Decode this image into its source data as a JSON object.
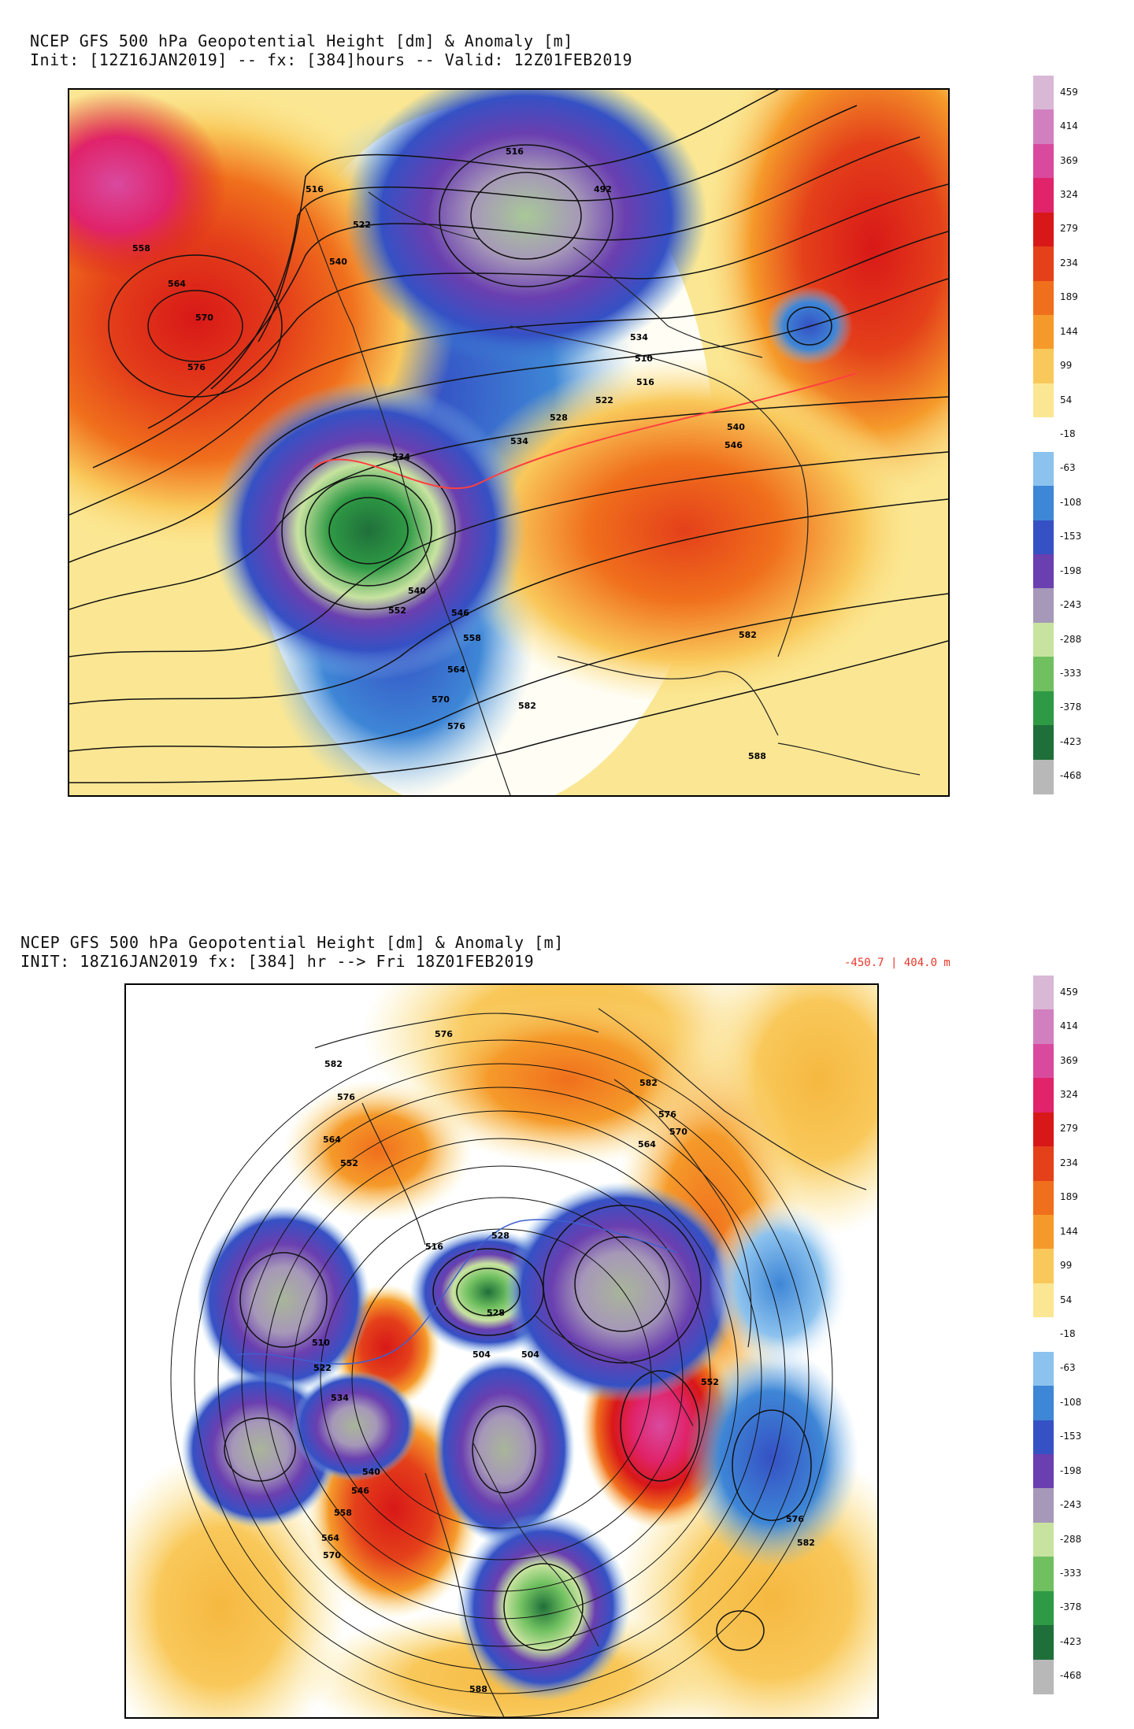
{
  "top": {
    "title_line1": "NCEP GFS 500 hPa Geopotential Height [dm] & Anomaly [m]",
    "title_line2": "Init: [12Z16JAN2019] -- fx: [384]hours -- Valid: 12Z01FEB2019",
    "height_labels": [
      "558",
      "564",
      "570",
      "576",
      "522",
      "540",
      "516",
      "534",
      "516",
      "492",
      "534",
      "510",
      "516",
      "522",
      "528",
      "534",
      "540",
      "546",
      "552",
      "540",
      "546",
      "558",
      "564",
      "570",
      "576",
      "582",
      "588",
      "582"
    ]
  },
  "bottom": {
    "title_line1": "NCEP GFS 500 hPa Geopotential Height [dm] & Anomaly [m]",
    "title_line2": "INIT: 18Z16JAN2019 fx: [384] hr --> Fri 18Z01FEB2019",
    "range": "-450.7 | 404.0 m",
    "height_labels": [
      "576",
      "582",
      "576",
      "564",
      "552",
      "528",
      "516",
      "510",
      "522",
      "534",
      "540",
      "546",
      "558",
      "564",
      "570",
      "528",
      "504",
      "504",
      "582",
      "576",
      "570",
      "564",
      "552",
      "576",
      "582",
      "588"
    ]
  },
  "colorbar": {
    "labels": [
      "459",
      "414",
      "369",
      "324",
      "279",
      "234",
      "189",
      "144",
      "99",
      "54",
      "-18",
      "-63",
      "-108",
      "-153",
      "-198",
      "-243",
      "-288",
      "-333",
      "-378",
      "-423",
      "-468"
    ],
    "colors": [
      "#d9b8d6",
      "#d27fc0",
      "#d94a9e",
      "#e0236a",
      "#d81818",
      "#e4401a",
      "#f06f1c",
      "#f59a2a",
      "#f9c85a",
      "#fbe793",
      "#ffffff",
      "#8cc2ee",
      "#3e86d6",
      "#3551c4",
      "#6a3fb0",
      "#a698b8",
      "#c8e3a0",
      "#70c060",
      "#2f9a45",
      "#1f6f3a",
      "#b8b8b8"
    ]
  }
}
